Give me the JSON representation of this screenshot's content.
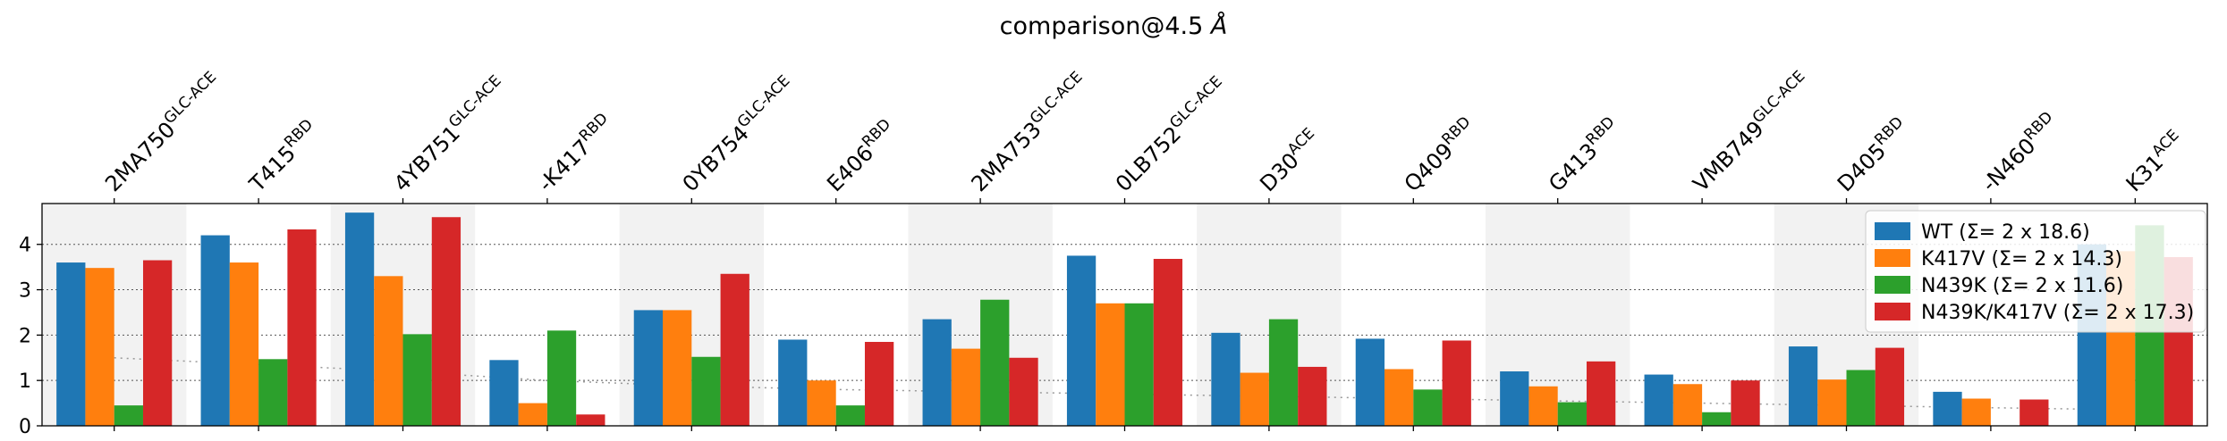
{
  "chart_data": {
    "type": "bar",
    "title_main": "comparison@4.5 ",
    "title_unit": "Å",
    "categories": [
      {
        "base": "2MA750",
        "sup": "GLC-ACE",
        "color": "#000000"
      },
      {
        "base": "T415",
        "sup": "RBD",
        "color": "#000000"
      },
      {
        "base": "4YB751",
        "sup": "GLC-ACE",
        "color": "#000000"
      },
      {
        "base": "-K417",
        "sup": "RBD",
        "color": "#d62728"
      },
      {
        "base": "0YB754",
        "sup": "GLC-ACE",
        "color": "#000000"
      },
      {
        "base": "E406",
        "sup": "RBD",
        "color": "#000000"
      },
      {
        "base": "2MA753",
        "sup": "GLC-ACE",
        "color": "#000000"
      },
      {
        "base": "0LB752",
        "sup": "GLC-ACE",
        "color": "#000000"
      },
      {
        "base": "D30",
        "sup": "ACE",
        "color": "#000000"
      },
      {
        "base": "Q409",
        "sup": "RBD",
        "color": "#000000"
      },
      {
        "base": "G413",
        "sup": "RBD",
        "color": "#000000"
      },
      {
        "base": "VMB749",
        "sup": "GLC-ACE",
        "color": "#000000"
      },
      {
        "base": "D405",
        "sup": "RBD",
        "color": "#000000"
      },
      {
        "base": "-N460",
        "sup": "RBD",
        "color": "#2ca02c"
      },
      {
        "base": "K31",
        "sup": "ACE",
        "color": "#000000"
      }
    ],
    "series": [
      {
        "name": "WT (Σ= 2 x 18.6)",
        "color": "#1f77b4",
        "values": [
          3.6,
          4.2,
          4.7,
          1.45,
          2.55,
          1.9,
          2.35,
          3.75,
          2.05,
          1.92,
          1.2,
          1.13,
          1.75,
          0.75,
          4.0
        ]
      },
      {
        "name": "K417V (Σ= 2 x 14.3)",
        "color": "#ff7f0e",
        "values": [
          3.48,
          3.6,
          3.3,
          0.5,
          2.55,
          1.0,
          1.7,
          2.7,
          1.17,
          1.25,
          0.87,
          0.92,
          1.02,
          0.6,
          3.85
        ]
      },
      {
        "name": "N439K (Σ= 2 x 11.6)",
        "color": "#2ca02c",
        "values": [
          0.45,
          1.47,
          2.02,
          2.1,
          1.52,
          0.45,
          2.78,
          2.7,
          2.35,
          0.8,
          0.52,
          0.3,
          1.23,
          0.0,
          4.42
        ]
      },
      {
        "name": "N439K/K417V (Σ= 2 x 17.3)",
        "color": "#d62728",
        "values": [
          3.65,
          4.33,
          4.6,
          0.25,
          3.35,
          1.85,
          1.5,
          3.68,
          1.3,
          1.88,
          1.42,
          1.0,
          1.72,
          0.58,
          3.72
        ]
      }
    ],
    "trend_values": [
      1.5,
      1.35,
      1.2,
      1.0,
      0.88,
      0.8,
      0.75,
      0.7,
      0.65,
      0.6,
      0.55,
      0.5,
      0.45,
      0.4,
      0.35
    ],
    "ylim": [
      0,
      4.9
    ],
    "yticks": [
      "0",
      "1",
      "2",
      "3",
      "4"
    ],
    "xlabel": "",
    "ylabel": "",
    "grid": "y-dotted",
    "shaded_categories": [
      0,
      2,
      4,
      6,
      8,
      10,
      12
    ],
    "legend_position": "top-right"
  }
}
